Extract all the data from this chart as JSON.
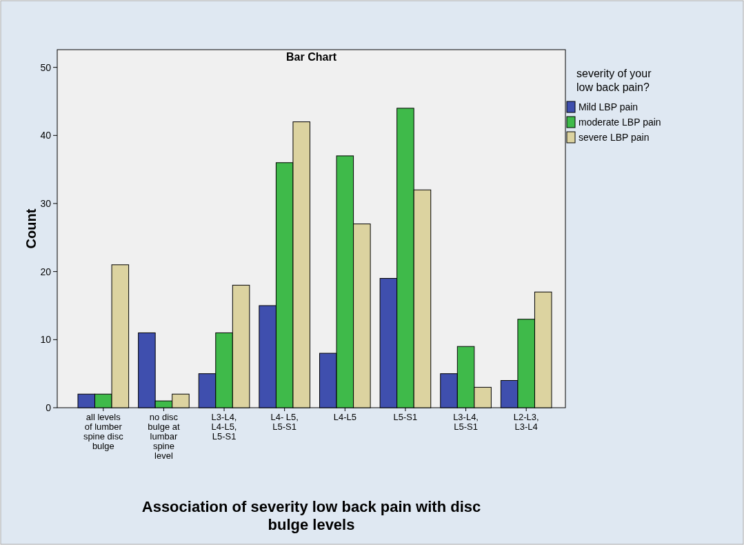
{
  "chart_data": {
    "type": "bar",
    "title": "Bar Chart",
    "xlabel": "Association of severity low back pain with disc bulge levels",
    "ylabel": "Count",
    "legend_title": "severity of your low back pain?",
    "legend": "right",
    "categories": [
      "all levels of lumber spine disc bulge",
      "no disc bulge at lumbar spine level",
      "L3-L4, L4-L5, L5-S1",
      "L4- L5, L5-S1",
      "L4-L5",
      "L5-S1",
      "L3-L4, L5-S1",
      "L2-L3, L3-L4"
    ],
    "series": [
      {
        "name": "Mild LBP pain",
        "color": "#3f4fae",
        "values": [
          2,
          11,
          5,
          15,
          8,
          19,
          5,
          4
        ]
      },
      {
        "name": "moderate LBP pain",
        "color": "#3fba4a",
        "values": [
          2,
          1,
          11,
          36,
          37,
          44,
          9,
          13
        ]
      },
      {
        "name": "severe LBP pain",
        "color": "#dcd3a0",
        "values": [
          21,
          2,
          18,
          42,
          27,
          32,
          3,
          17
        ]
      }
    ],
    "ylim": [
      0,
      52.6
    ],
    "yticks": [
      0,
      10,
      20,
      30,
      40,
      50
    ]
  }
}
